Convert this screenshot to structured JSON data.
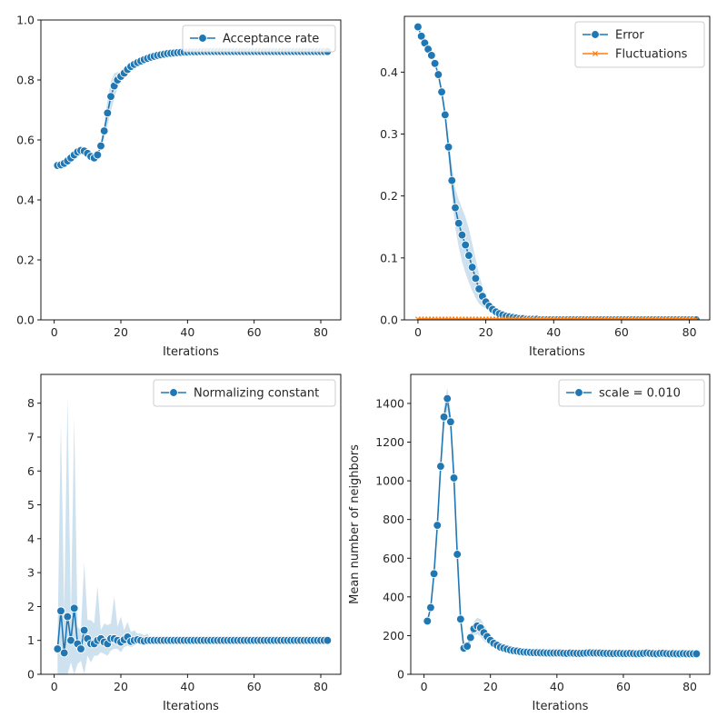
{
  "chart_data": [
    {
      "type": "line",
      "xlabel": "Iterations",
      "ylabel": "",
      "xlim": [
        -4,
        86
      ],
      "ylim": [
        0,
        1
      ],
      "xticks": [
        0,
        20,
        40,
        60,
        80
      ],
      "yticks": [
        0.0,
        0.2,
        0.4,
        0.6,
        0.8,
        1.0
      ],
      "ytick_labels": [
        "0.0",
        "0.2",
        "0.4",
        "0.6",
        "0.8",
        "1.0"
      ],
      "grid": false,
      "legend": "top-right",
      "series": [
        {
          "name": "Acceptance rate",
          "color": "#1f77b4",
          "marker": "circle",
          "x_start": 1,
          "values": [
            0.515,
            0.517,
            0.522,
            0.53,
            0.54,
            0.55,
            0.56,
            0.565,
            0.563,
            0.555,
            0.545,
            0.54,
            0.55,
            0.58,
            0.63,
            0.69,
            0.745,
            0.78,
            0.8,
            0.812,
            0.823,
            0.835,
            0.845,
            0.852,
            0.858,
            0.863,
            0.868,
            0.872,
            0.876,
            0.879,
            0.882,
            0.884,
            0.886,
            0.888,
            0.889,
            0.89,
            0.891,
            0.892,
            0.893,
            0.893,
            0.894,
            0.894,
            0.894,
            0.895,
            0.895,
            0.895,
            0.895,
            0.895,
            0.895,
            0.895,
            0.895,
            0.895,
            0.895,
            0.895,
            0.895,
            0.895,
            0.895,
            0.895,
            0.895,
            0.895,
            0.895,
            0.895,
            0.895,
            0.895,
            0.895,
            0.895,
            0.895,
            0.895,
            0.895,
            0.895,
            0.895,
            0.895,
            0.895,
            0.895,
            0.895,
            0.895,
            0.895,
            0.895,
            0.895,
            0.895,
            0.895,
            0.895
          ],
          "band": {
            "center": 17,
            "width": 2.5,
            "spread": 0.05
          }
        }
      ]
    },
    {
      "type": "line",
      "xlabel": "Iterations",
      "ylabel": "",
      "xlim": [
        -4,
        86
      ],
      "ylim": [
        0,
        0.49
      ],
      "xticks": [
        0,
        20,
        40,
        60,
        80
      ],
      "yticks": [
        0.0,
        0.1,
        0.2,
        0.3,
        0.4
      ],
      "ytick_labels": [
        "0.0",
        "0.1",
        "0.2",
        "0.3",
        "0.4"
      ],
      "grid": false,
      "legend": "top-right",
      "series": [
        {
          "name": "Error",
          "color": "#1f77b4",
          "marker": "circle",
          "x_start": 0,
          "values": [
            0.473,
            0.458,
            0.447,
            0.437,
            0.427,
            0.414,
            0.396,
            0.368,
            0.331,
            0.279,
            0.225,
            0.181,
            0.156,
            0.137,
            0.121,
            0.104,
            0.085,
            0.067,
            0.05,
            0.038,
            0.029,
            0.022,
            0.017,
            0.013,
            0.01,
            0.008,
            0.006,
            0.005,
            0.004,
            0.003,
            0.002,
            0.002,
            0.001,
            0.001,
            0.001,
            0.001,
            0,
            0,
            0,
            0,
            0,
            0,
            0,
            0,
            0,
            0,
            0,
            0,
            0,
            0,
            0,
            0,
            0,
            0,
            0,
            0,
            0,
            0,
            0,
            0,
            0,
            0,
            0,
            0,
            0,
            0,
            0,
            0,
            0,
            0,
            0,
            0,
            0,
            0,
            0,
            0,
            0,
            0,
            0,
            0,
            0,
            0,
            0
          ],
          "band": {
            "center": 14,
            "width": 5,
            "spread": 0.045
          }
        },
        {
          "name": "Fluctuations",
          "color": "#ff7f0e",
          "marker": "x",
          "x_start": 0,
          "constant": 0.001,
          "count": 83
        }
      ]
    },
    {
      "type": "line",
      "xlabel": "Iterations",
      "ylabel": "",
      "xlim": [
        -4,
        86
      ],
      "ylim": [
        0,
        8.85
      ],
      "xticks": [
        0,
        20,
        40,
        60,
        80
      ],
      "yticks": [
        0,
        1,
        2,
        3,
        4,
        5,
        6,
        7,
        8
      ],
      "ytick_labels": [
        "0",
        "1",
        "2",
        "3",
        "4",
        "5",
        "6",
        "7",
        "8"
      ],
      "grid": false,
      "legend": "top-right",
      "series": [
        {
          "name": "Normalizing constant",
          "color": "#1f77b4",
          "marker": "circle",
          "x_start": 1,
          "values": [
            0.75,
            1.87,
            0.63,
            1.7,
            1.0,
            1.95,
            0.9,
            0.75,
            1.3,
            1.05,
            0.9,
            0.9,
            1.0,
            1.05,
            0.95,
            0.9,
            1.05,
            1.05,
            1.0,
            0.95,
            1.02,
            1.1,
            0.97,
            1.0,
            1.02,
            1.0,
            0.98,
            1.0,
            1.0,
            1.0,
            1.0,
            1.0,
            1.0,
            1.0,
            1.0,
            1.0,
            1.0,
            1.0,
            1.0,
            1.0,
            1.0,
            1.0,
            1.0,
            1.0,
            1.0,
            1.0,
            1.0,
            1.0,
            1.0,
            1.0,
            1.0,
            1.0,
            1.0,
            1.0,
            1.0,
            1.0,
            1.0,
            1.0,
            1.0,
            1.0,
            1.0,
            1.0,
            1.0,
            1.0,
            1.0,
            1.0,
            1.0,
            1.0,
            1.0,
            1.0,
            1.0,
            1.0,
            1.0,
            1.0,
            1.0,
            1.0,
            1.0,
            1.0,
            1.0,
            1.0,
            1.0,
            1.0
          ],
          "band_upper": [
            1.0,
            7.45,
            1.9,
            8.2,
            1.6,
            7.6,
            1.4,
            1.3,
            3.3,
            1.6,
            1.6,
            1.5,
            2.6,
            1.3,
            1.5,
            1.45,
            1.5,
            2.3,
            1.4,
            1.7,
            1.3,
            1.55,
            1.25,
            1.3,
            1.2,
            1.2,
            1.15,
            1.2,
            1.0
          ],
          "band_lower": [
            0.0,
            0.0,
            0.0,
            0.0,
            0.35,
            0.0,
            0.3,
            0.4,
            0.0,
            0.55,
            0.35,
            0.55,
            0.55,
            0.65,
            0.6,
            0.55,
            0.7,
            0.75,
            0.75,
            0.65,
            0.8,
            0.85,
            0.8,
            0.85,
            0.9,
            0.9,
            0.9,
            0.92,
            1.0
          ]
        }
      ]
    },
    {
      "type": "line",
      "xlabel": "Iterations",
      "ylabel": "Mean number of neighbors",
      "xlim": [
        -4,
        86
      ],
      "ylim": [
        0,
        1550
      ],
      "xticks": [
        0,
        20,
        40,
        60,
        80
      ],
      "yticks": [
        0,
        200,
        400,
        600,
        800,
        1000,
        1200,
        1400
      ],
      "ytick_labels": [
        "0",
        "200",
        "400",
        "600",
        "800",
        "1000",
        "1200",
        "1400"
      ],
      "grid": false,
      "legend": "top-right",
      "series": [
        {
          "name": "scale = 0.010",
          "color": "#1f77b4",
          "marker": "circle",
          "x_start": 1,
          "values": [
            275,
            345,
            520,
            770,
            1075,
            1330,
            1425,
            1305,
            1015,
            620,
            285,
            135,
            145,
            190,
            235,
            250,
            240,
            215,
            195,
            175,
            160,
            150,
            140,
            135,
            130,
            125,
            122,
            120,
            117,
            115,
            114,
            113,
            112,
            112,
            111,
            111,
            110,
            110,
            110,
            110,
            110,
            109,
            108,
            110,
            109,
            108,
            108,
            109,
            110,
            111,
            110,
            110,
            110,
            109,
            108,
            108,
            107,
            108,
            108,
            107,
            107,
            108,
            107,
            106,
            107,
            108,
            110,
            108,
            107,
            106,
            108,
            109,
            107,
            106,
            107,
            106,
            106,
            107,
            106,
            106,
            106,
            106
          ],
          "band": {
            "center": 7,
            "width": 4,
            "spread": 55
          },
          "band2": {
            "center": 17,
            "width": 4,
            "spread": 45
          }
        }
      ]
    }
  ]
}
